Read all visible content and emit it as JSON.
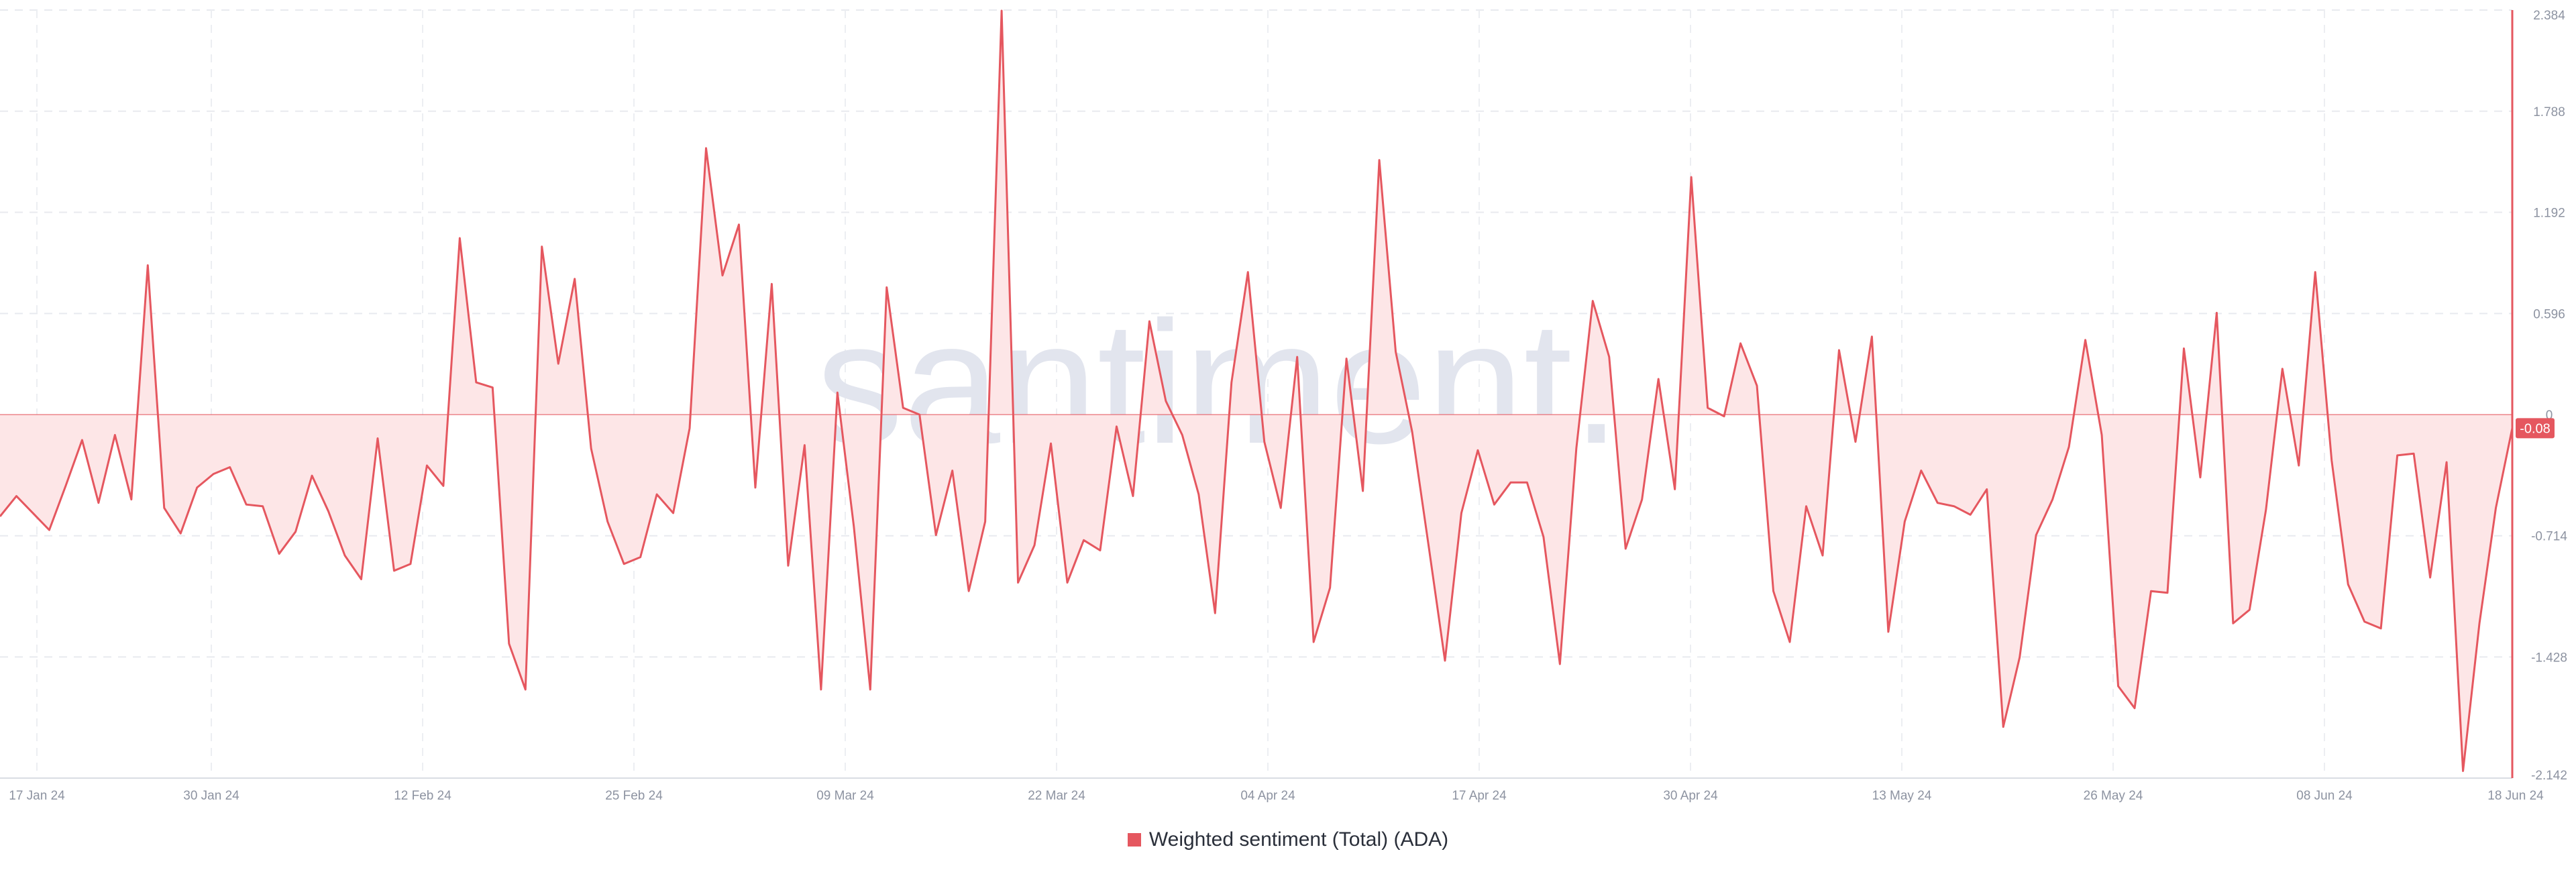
{
  "watermark": ".santiment.",
  "chart_data": {
    "type": "area",
    "title": "",
    "xlabel": "",
    "ylabel": "",
    "x_ticks": [
      "17 Jan 24",
      "30 Jan 24",
      "12 Feb 24",
      "25 Feb 24",
      "09 Mar 24",
      "22 Mar 24",
      "04 Apr 24",
      "17 Apr 24",
      "30 Apr 24",
      "13 May 24",
      "26 May 24",
      "08 Jun 24",
      "18 Jun 24"
    ],
    "y_ticks": [
      "2.384",
      "1.788",
      "1.192",
      "0.596",
      "0",
      "-0.714",
      "-1.428",
      "-2.142"
    ],
    "y_tick_values": [
      2.384,
      1.788,
      1.192,
      0.596,
      0,
      -0.714,
      -1.428,
      -2.142
    ],
    "ylim": [
      -2.142,
      2.384
    ],
    "current_value_label": "-0.08",
    "current_value": -0.08,
    "grid": true,
    "legend_position": "bottom-center",
    "color": "#e5575f",
    "fill_color": "#fde6e7",
    "series": [
      {
        "name": "Weighted sentiment (Total) (ADA)",
        "values": [
          -0.6,
          -0.48,
          -0.58,
          -0.68,
          -0.42,
          -0.15,
          -0.52,
          -0.12,
          -0.5,
          0.88,
          -0.55,
          -0.7,
          -0.43,
          -0.35,
          -0.31,
          -0.53,
          -0.54,
          -0.82,
          -0.69,
          -0.36,
          -0.57,
          -0.83,
          -0.97,
          -0.14,
          -0.92,
          -0.88,
          -0.3,
          -0.42,
          1.04,
          0.19,
          0.16,
          -1.35,
          -1.62,
          0.99,
          0.3,
          0.8,
          -0.2,
          -0.63,
          -0.88,
          -0.84,
          -0.47,
          -0.58,
          -0.08,
          1.57,
          0.82,
          1.12,
          -0.43,
          0.77,
          -0.89,
          -0.18,
          -1.62,
          0.13,
          -0.66,
          -1.62,
          0.75,
          0.04,
          0.0,
          -0.71,
          -0.33,
          -1.04,
          -0.63,
          2.38,
          -0.99,
          -0.77,
          -0.17,
          -0.99,
          -0.74,
          -0.8,
          -0.07,
          -0.48,
          0.55,
          0.08,
          -0.12,
          -0.47,
          -1.17,
          0.19,
          0.84,
          -0.16,
          -0.55,
          0.34,
          -1.34,
          -1.02,
          0.33,
          -0.45,
          1.5,
          0.37,
          -0.1,
          -0.77,
          -1.45,
          -0.58,
          -0.21,
          -0.53,
          -0.4,
          -0.4,
          -0.72,
          -1.47,
          -0.2,
          0.67,
          0.34,
          -0.79,
          -0.5,
          0.21,
          -0.44,
          1.4,
          0.04,
          -0.01,
          0.42,
          0.17,
          -1.04,
          -1.34,
          -0.54,
          -0.83,
          0.38,
          -0.16,
          0.46,
          -1.28,
          -0.63,
          -0.33,
          -0.52,
          -0.54,
          -0.59,
          -0.44,
          -1.84,
          -1.43,
          -0.71,
          -0.5,
          -0.19,
          0.44,
          -0.12,
          -1.6,
          -1.73,
          -1.04,
          -1.05,
          0.39,
          -0.37,
          0.6,
          -1.23,
          -1.15,
          -0.56,
          0.27,
          -0.3,
          0.84,
          -0.27,
          -1.0,
          -1.22,
          -1.26,
          -0.24,
          -0.23,
          -0.96,
          -0.28,
          -2.1,
          -1.23,
          -0.55,
          -0.08
        ]
      }
    ]
  }
}
